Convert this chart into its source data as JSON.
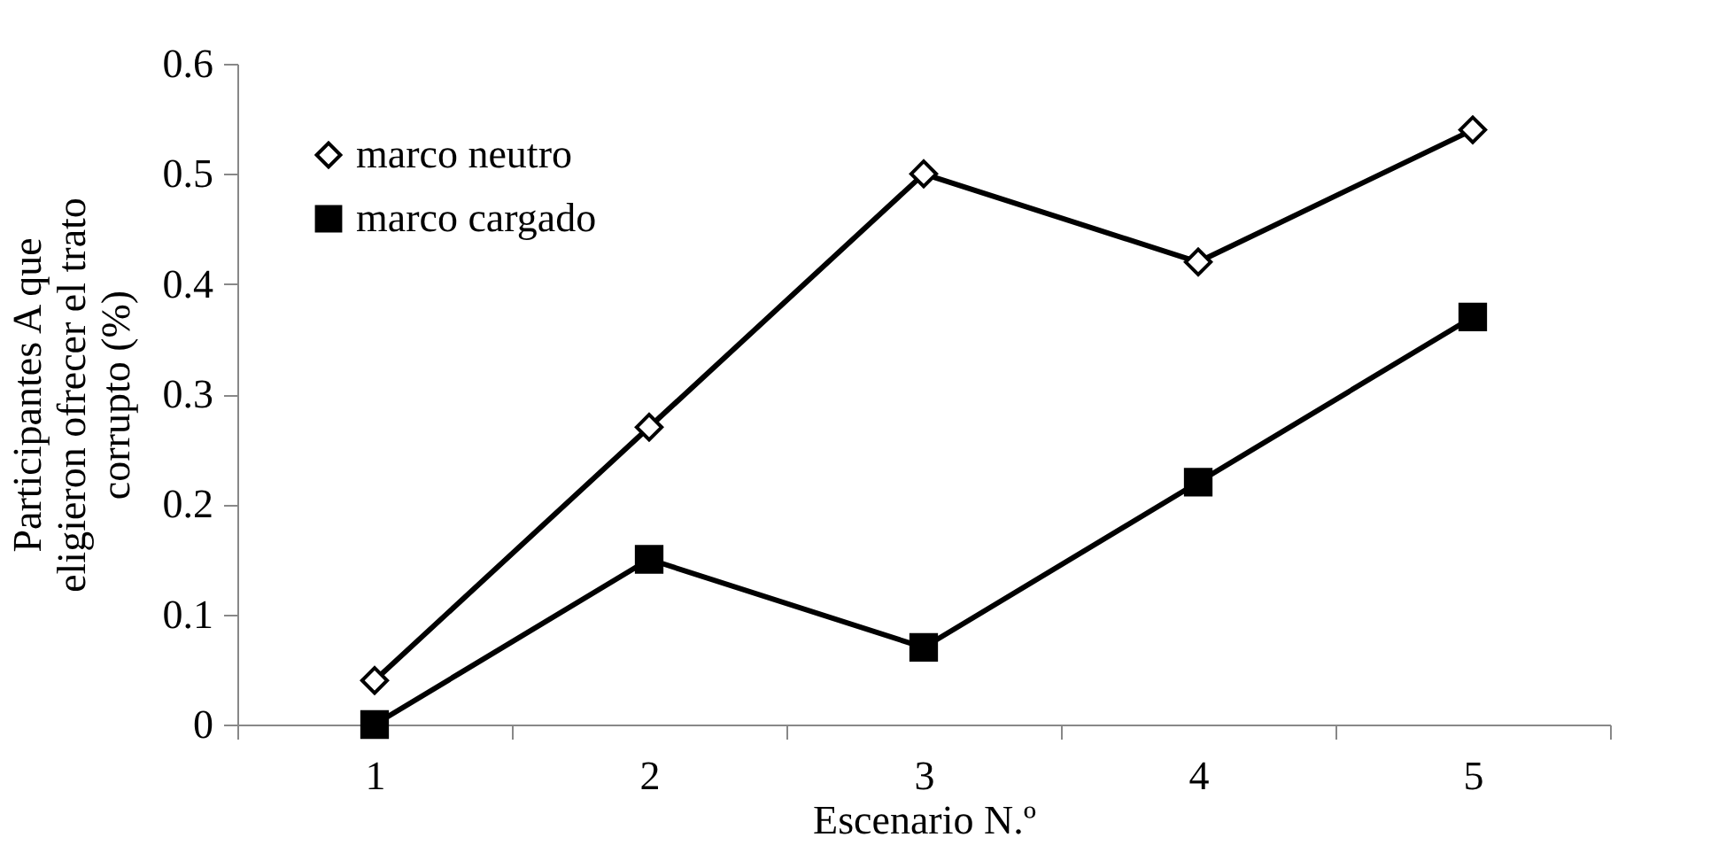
{
  "chart_data": {
    "type": "line",
    "xlabel": "Escenario N.º",
    "ylabel": "Participantes A que eligieron ofrecer el trato corrupto (%)",
    "categories": [
      "1",
      "2",
      "3",
      "4",
      "5"
    ],
    "series": [
      {
        "name": "marco neutro",
        "color": "#000000",
        "marker": "diamond",
        "values": [
          0.04,
          0.27,
          0.5,
          0.42,
          0.54
        ]
      },
      {
        "name": "marco cargado",
        "color": "#000000",
        "marker": "square",
        "values": [
          0,
          0.15,
          0.07,
          0.22,
          0.37
        ]
      }
    ],
    "ylim": [
      0,
      0.6
    ],
    "yticks": [
      0,
      0.1,
      0.2,
      0.3,
      0.4,
      0.5,
      0.6
    ],
    "grid": false,
    "legend": "top left",
    "line_style": "solid"
  }
}
